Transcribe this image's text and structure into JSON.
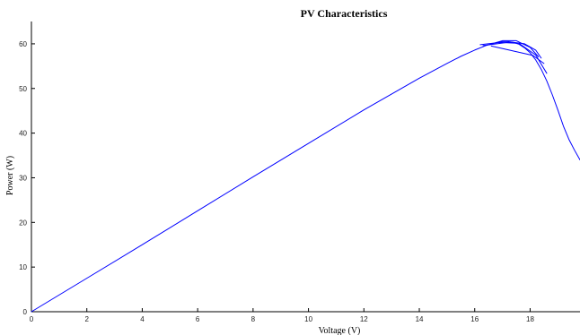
{
  "chart_data": {
    "type": "line",
    "title": "PV Characteristics",
    "xlabel": "Voltage (V)",
    "ylabel": "Power (W)",
    "xlim": [
      0,
      19.8
    ],
    "ylim": [
      0,
      65
    ],
    "xticks": [
      0,
      2,
      4,
      6,
      8,
      10,
      12,
      14,
      16,
      18
    ],
    "yticks": [
      0,
      10,
      20,
      30,
      40,
      50,
      60
    ],
    "grid": false,
    "legend": "none",
    "series": [
      {
        "color": "#0000ff",
        "x": [
          0,
          2,
          4,
          6,
          8,
          10,
          12,
          14,
          15,
          15.5,
          16,
          16.4,
          16.8,
          17.0,
          17.2,
          17.4,
          17.6,
          17.8,
          18.0,
          18.2,
          18.4,
          18.6,
          18.8,
          19.0,
          19.2,
          19.4,
          19.6,
          19.8
        ],
        "y": [
          0,
          7.5,
          15.0,
          22.6,
          30.2,
          37.7,
          45.2,
          52.3,
          55.6,
          57.2,
          58.6,
          59.6,
          60.3,
          60.5,
          60.5,
          60.3,
          59.9,
          59.1,
          58.0,
          56.4,
          54.3,
          51.7,
          48.6,
          45.2,
          41.6,
          38.6,
          36.2,
          34.0
        ]
      },
      {
        "color": "#0000ff",
        "x": [
          16.3,
          16.8,
          17.3,
          17.8,
          18.2,
          18.4
        ],
        "y": [
          59.6,
          60.0,
          60.4,
          60.0,
          58.6,
          56.8
        ]
      },
      {
        "color": "#0000ff",
        "x": [
          16.5,
          17.0,
          17.5,
          18.0,
          18.3
        ],
        "y": [
          59.8,
          60.7,
          60.7,
          59.2,
          57.1
        ]
      },
      {
        "color": "#0000ff",
        "x": [
          16.6,
          17.1,
          17.6,
          18.1,
          18.5
        ],
        "y": [
          59.5,
          58.8,
          58.1,
          57.4,
          55.6
        ]
      },
      {
        "color": "#0000ff",
        "x": [
          16.2,
          16.9,
          17.6,
          18.2,
          18.6
        ],
        "y": [
          59.8,
          60.3,
          60.1,
          57.5,
          53.4
        ]
      }
    ]
  }
}
